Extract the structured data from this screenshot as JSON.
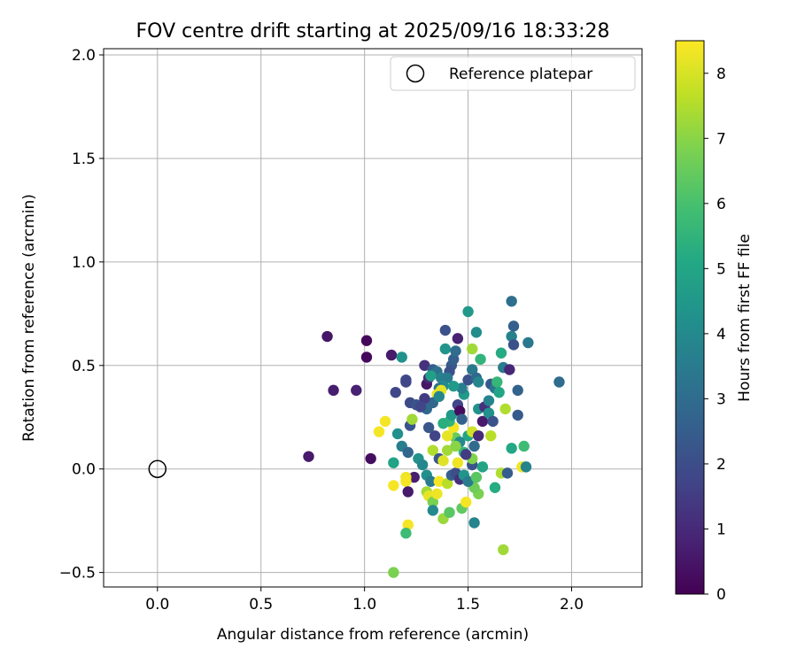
{
  "chart_data": {
    "type": "scatter",
    "title": "FOV centre drift starting at 2025/09/16 18:33:28",
    "xlabel": "Angular distance from reference (arcmin)",
    "ylabel": "Rotation from reference (arcmin)",
    "xlim": [
      -0.26,
      2.34
    ],
    "ylim": [
      -0.57,
      2.03
    ],
    "xticks": [
      0.0,
      0.5,
      1.0,
      1.5,
      2.0
    ],
    "xtick_labels": [
      "0.0",
      "0.5",
      "1.0",
      "1.5",
      "2.0"
    ],
    "yticks": [
      -0.5,
      0.0,
      0.5,
      1.0,
      1.5,
      2.0
    ],
    "ytick_labels": [
      "−0.5",
      "0.0",
      "0.5",
      "1.0",
      "1.5",
      "2.0"
    ],
    "grid": true,
    "legend": {
      "position": "top-right",
      "entries": [
        "Reference platepar"
      ]
    },
    "reference_point": {
      "x": 0.0,
      "y": 0.0
    },
    "colorbar": {
      "label": "Hours from first FF file",
      "range": [
        0,
        8.5
      ],
      "ticks": [
        0,
        1,
        2,
        3,
        4,
        5,
        6,
        7,
        8
      ],
      "tick_labels": [
        "0",
        "1",
        "2",
        "3",
        "4",
        "5",
        "6",
        "7",
        "8"
      ],
      "colormap": "viridis"
    },
    "points": [
      {
        "x": 0.73,
        "y": 0.06,
        "h": 0.6
      },
      {
        "x": 0.82,
        "y": 0.64,
        "h": 0.5
      },
      {
        "x": 0.85,
        "y": 0.38,
        "h": 0.7
      },
      {
        "x": 0.96,
        "y": 0.38,
        "h": 0.8
      },
      {
        "x": 1.01,
        "y": 0.62,
        "h": 0.2
      },
      {
        "x": 1.01,
        "y": 0.54,
        "h": 0.2
      },
      {
        "x": 1.03,
        "y": 0.05,
        "h": 0.3
      },
      {
        "x": 1.13,
        "y": 0.55,
        "h": 0.6
      },
      {
        "x": 1.15,
        "y": 0.37,
        "h": 1.8
      },
      {
        "x": 1.2,
        "y": 0.43,
        "h": 1.9
      },
      {
        "x": 1.2,
        "y": 0.42,
        "h": 1.8
      },
      {
        "x": 1.18,
        "y": 0.54,
        "h": 4.3
      },
      {
        "x": 1.22,
        "y": 0.32,
        "h": 1.9
      },
      {
        "x": 1.25,
        "y": 0.31,
        "h": 2.2
      },
      {
        "x": 1.29,
        "y": 0.5,
        "h": 1.2
      },
      {
        "x": 1.3,
        "y": 0.41,
        "h": 0.5
      },
      {
        "x": 1.31,
        "y": 0.44,
        "h": 1.0
      },
      {
        "x": 1.33,
        "y": 0.48,
        "h": 2.5
      },
      {
        "x": 1.35,
        "y": 0.47,
        "h": 3.1
      },
      {
        "x": 1.32,
        "y": 0.45,
        "h": 4.8
      },
      {
        "x": 1.37,
        "y": 0.44,
        "h": 3.7
      },
      {
        "x": 1.39,
        "y": 0.67,
        "h": 2.1
      },
      {
        "x": 1.39,
        "y": 0.58,
        "h": 4.4
      },
      {
        "x": 1.42,
        "y": 0.5,
        "h": 2.4
      },
      {
        "x": 1.43,
        "y": 0.53,
        "h": 2.6
      },
      {
        "x": 1.45,
        "y": 0.63,
        "h": 0.8
      },
      {
        "x": 1.44,
        "y": 0.57,
        "h": 3.0
      },
      {
        "x": 1.41,
        "y": 0.47,
        "h": 2.1
      },
      {
        "x": 1.4,
        "y": 0.44,
        "h": 3.5
      },
      {
        "x": 1.38,
        "y": 0.4,
        "h": 4.0
      },
      {
        "x": 1.36,
        "y": 0.39,
        "h": 3.3
      },
      {
        "x": 1.35,
        "y": 0.36,
        "h": 8.3
      },
      {
        "x": 1.37,
        "y": 0.38,
        "h": 8.2
      },
      {
        "x": 1.33,
        "y": 0.32,
        "h": 2.8
      },
      {
        "x": 1.3,
        "y": 0.29,
        "h": 2.9
      },
      {
        "x": 1.29,
        "y": 0.34,
        "h": 1.5
      },
      {
        "x": 1.27,
        "y": 0.3,
        "h": 1.8
      },
      {
        "x": 1.22,
        "y": 0.21,
        "h": 2.2
      },
      {
        "x": 1.23,
        "y": 0.24,
        "h": 7.3
      },
      {
        "x": 1.16,
        "y": 0.17,
        "h": 4.2
      },
      {
        "x": 1.18,
        "y": 0.11,
        "h": 3.6
      },
      {
        "x": 1.1,
        "y": 0.23,
        "h": 8.4
      },
      {
        "x": 1.07,
        "y": 0.18,
        "h": 8.4
      },
      {
        "x": 1.14,
        "y": 0.03,
        "h": 4.9
      },
      {
        "x": 1.21,
        "y": 0.08,
        "h": 2.8
      },
      {
        "x": 1.24,
        "y": -0.04,
        "h": 0.7
      },
      {
        "x": 1.2,
        "y": -0.04,
        "h": 8.3
      },
      {
        "x": 1.2,
        "y": -0.06,
        "h": 8.4
      },
      {
        "x": 1.14,
        "y": -0.08,
        "h": 8.4
      },
      {
        "x": 1.21,
        "y": -0.11,
        "h": 0.6
      },
      {
        "x": 1.21,
        "y": -0.27,
        "h": 8.4
      },
      {
        "x": 1.2,
        "y": -0.31,
        "h": 5.8
      },
      {
        "x": 1.14,
        "y": -0.5,
        "h": 6.8
      },
      {
        "x": 1.26,
        "y": 0.05,
        "h": 4.3
      },
      {
        "x": 1.28,
        "y": 0.02,
        "h": 3.9
      },
      {
        "x": 1.3,
        "y": -0.03,
        "h": 4.2
      },
      {
        "x": 1.32,
        "y": -0.06,
        "h": 3.5
      },
      {
        "x": 1.3,
        "y": -0.11,
        "h": 7.3
      },
      {
        "x": 1.31,
        "y": -0.13,
        "h": 8.2
      },
      {
        "x": 1.33,
        "y": -0.16,
        "h": 6.8
      },
      {
        "x": 1.33,
        "y": -0.2,
        "h": 4.0
      },
      {
        "x": 1.35,
        "y": -0.12,
        "h": 8.3
      },
      {
        "x": 1.38,
        "y": -0.24,
        "h": 7.2
      },
      {
        "x": 1.41,
        "y": -0.21,
        "h": 6.3
      },
      {
        "x": 1.47,
        "y": -0.19,
        "h": 6.4
      },
      {
        "x": 1.49,
        "y": -0.16,
        "h": 8.4
      },
      {
        "x": 1.53,
        "y": -0.26,
        "h": 3.8
      },
      {
        "x": 1.55,
        "y": -0.12,
        "h": 6.8
      },
      {
        "x": 1.53,
        "y": -0.09,
        "h": 6.6
      },
      {
        "x": 1.36,
        "y": -0.06,
        "h": 8.4
      },
      {
        "x": 1.4,
        "y": -0.07,
        "h": 7.6
      },
      {
        "x": 1.42,
        "y": -0.03,
        "h": 2.6
      },
      {
        "x": 1.44,
        "y": -0.02,
        "h": 2.0
      },
      {
        "x": 1.46,
        "y": -0.05,
        "h": 1.2
      },
      {
        "x": 1.48,
        "y": -0.03,
        "h": 4.4
      },
      {
        "x": 1.5,
        "y": -0.06,
        "h": 3.5
      },
      {
        "x": 1.52,
        "y": 0.02,
        "h": 2.2
      },
      {
        "x": 1.54,
        "y": -0.04,
        "h": 6.3
      },
      {
        "x": 1.57,
        "y": 0.01,
        "h": 4.9
      },
      {
        "x": 1.63,
        "y": -0.09,
        "h": 5.2
      },
      {
        "x": 1.66,
        "y": -0.02,
        "h": 7.5
      },
      {
        "x": 1.69,
        "y": -0.02,
        "h": 2.5
      },
      {
        "x": 1.67,
        "y": -0.39,
        "h": 7.3
      },
      {
        "x": 1.76,
        "y": 0.01,
        "h": 8.3
      },
      {
        "x": 1.78,
        "y": 0.01,
        "h": 3.8
      },
      {
        "x": 1.71,
        "y": 0.1,
        "h": 5.1
      },
      {
        "x": 1.77,
        "y": 0.11,
        "h": 5.8
      },
      {
        "x": 1.33,
        "y": 0.09,
        "h": 7.5
      },
      {
        "x": 1.36,
        "y": 0.05,
        "h": 2.3
      },
      {
        "x": 1.38,
        "y": 0.04,
        "h": 8.1
      },
      {
        "x": 1.4,
        "y": 0.09,
        "h": 7.3
      },
      {
        "x": 1.43,
        "y": 0.2,
        "h": 8.4
      },
      {
        "x": 1.44,
        "y": 0.15,
        "h": 6.5
      },
      {
        "x": 1.46,
        "y": 0.13,
        "h": 4.0
      },
      {
        "x": 1.45,
        "y": 0.03,
        "h": 8.3
      },
      {
        "x": 1.48,
        "y": 0.08,
        "h": 5.5
      },
      {
        "x": 1.5,
        "y": 0.16,
        "h": 5.0
      },
      {
        "x": 1.52,
        "y": 0.18,
        "h": 7.9
      },
      {
        "x": 1.55,
        "y": 0.16,
        "h": 1.0
      },
      {
        "x": 1.53,
        "y": 0.11,
        "h": 3.0
      },
      {
        "x": 1.52,
        "y": 0.05,
        "h": 6.9
      },
      {
        "x": 1.41,
        "y": 0.23,
        "h": 5.5
      },
      {
        "x": 1.38,
        "y": 0.22,
        "h": 5.3
      },
      {
        "x": 1.34,
        "y": 0.16,
        "h": 1.7
      },
      {
        "x": 1.31,
        "y": 0.2,
        "h": 2.3
      },
      {
        "x": 1.42,
        "y": 0.26,
        "h": 4.5
      },
      {
        "x": 1.45,
        "y": 0.31,
        "h": 1.8
      },
      {
        "x": 1.46,
        "y": 0.28,
        "h": 0.3
      },
      {
        "x": 1.48,
        "y": 0.36,
        "h": 4.6
      },
      {
        "x": 1.47,
        "y": 0.39,
        "h": 3.6
      },
      {
        "x": 1.5,
        "y": 0.43,
        "h": 2.1
      },
      {
        "x": 1.52,
        "y": 0.48,
        "h": 3.4
      },
      {
        "x": 1.54,
        "y": 0.44,
        "h": 2.9
      },
      {
        "x": 1.55,
        "y": 0.42,
        "h": 3.9
      },
      {
        "x": 1.5,
        "y": 0.76,
        "h": 4.5
      },
      {
        "x": 1.52,
        "y": 0.58,
        "h": 7.3
      },
      {
        "x": 1.54,
        "y": 0.66,
        "h": 4.1
      },
      {
        "x": 1.56,
        "y": 0.53,
        "h": 5.5
      },
      {
        "x": 1.55,
        "y": 0.29,
        "h": 4.3
      },
      {
        "x": 1.58,
        "y": 0.3,
        "h": 1.2
      },
      {
        "x": 1.57,
        "y": 0.23,
        "h": 0.6
      },
      {
        "x": 1.6,
        "y": 0.33,
        "h": 3.8
      },
      {
        "x": 1.6,
        "y": 0.27,
        "h": 4.2
      },
      {
        "x": 1.62,
        "y": 0.23,
        "h": 2.2
      },
      {
        "x": 1.61,
        "y": 0.16,
        "h": 7.6
      },
      {
        "x": 1.61,
        "y": 0.41,
        "h": 2.4
      },
      {
        "x": 1.63,
        "y": 0.39,
        "h": 3.3
      },
      {
        "x": 1.64,
        "y": 0.42,
        "h": 5.6
      },
      {
        "x": 1.65,
        "y": 0.37,
        "h": 5.0
      },
      {
        "x": 1.66,
        "y": 0.56,
        "h": 5.2
      },
      {
        "x": 1.68,
        "y": 0.29,
        "h": 7.5
      },
      {
        "x": 1.67,
        "y": 0.49,
        "h": 3.5
      },
      {
        "x": 1.7,
        "y": 0.48,
        "h": 0.9
      },
      {
        "x": 1.71,
        "y": 0.64,
        "h": 3.7
      },
      {
        "x": 1.72,
        "y": 0.69,
        "h": 2.6
      },
      {
        "x": 1.71,
        "y": 0.81,
        "h": 3.1
      },
      {
        "x": 1.72,
        "y": 0.6,
        "h": 2.1
      },
      {
        "x": 1.74,
        "y": 0.38,
        "h": 2.7
      },
      {
        "x": 1.74,
        "y": 0.26,
        "h": 2.4
      },
      {
        "x": 1.79,
        "y": 0.61,
        "h": 3.4
      },
      {
        "x": 1.94,
        "y": 0.42,
        "h": 3.0
      },
      {
        "x": 1.4,
        "y": 0.16,
        "h": 8.2
      },
      {
        "x": 1.44,
        "y": 0.11,
        "h": 7.0
      },
      {
        "x": 1.36,
        "y": 0.35,
        "h": 3.9
      },
      {
        "x": 1.47,
        "y": 0.24,
        "h": 2.7
      },
      {
        "x": 1.43,
        "y": 0.4,
        "h": 4.6
      },
      {
        "x": 1.49,
        "y": 0.07,
        "h": 1.5
      }
    ]
  }
}
